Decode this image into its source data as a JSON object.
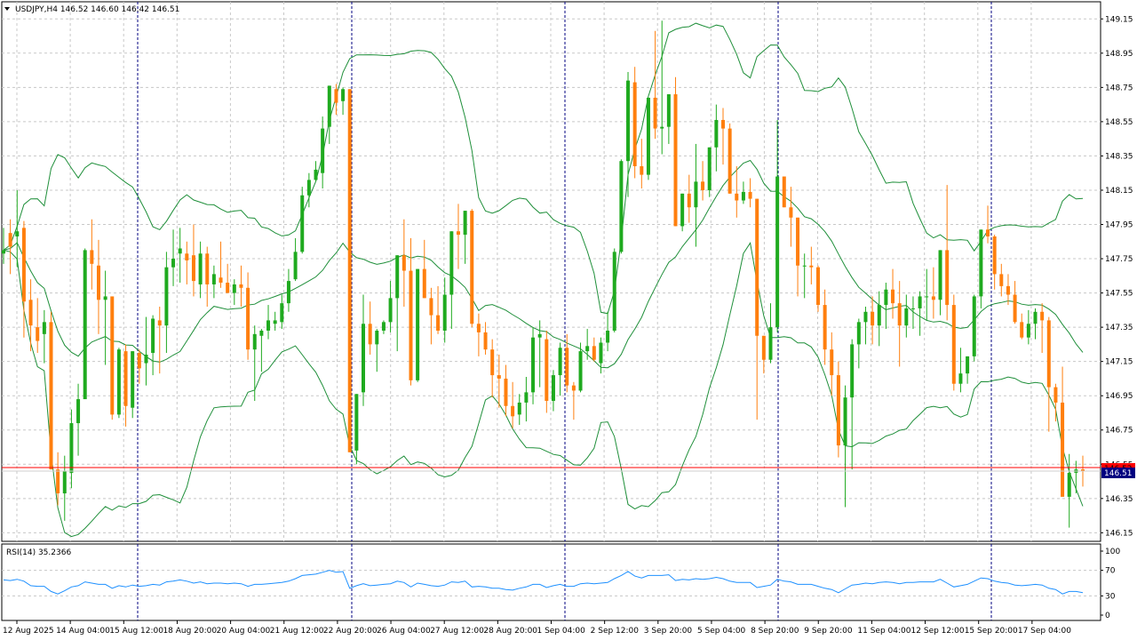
{
  "header": {
    "menu_icon": "triangle-down-icon",
    "title": "USDJPY,H4  146.52 146.60 146.42 146.51"
  },
  "current_price_label": "146.51",
  "current_price_label_secondary": "146.52",
  "rsi_panel": {
    "label": "RSI(14) 35.2366"
  },
  "colors": {
    "bull": "#1faa1f",
    "bear": "#ff7f0e",
    "bands": "#1f8f3a",
    "rsi": "#1e90ff",
    "price_line": "#ff0000",
    "grid": "#c8c8c8",
    "separator": "#000080",
    "price_label_bg": "#000080"
  },
  "chart_data": [
    {
      "type": "candlestick",
      "symbol": "USDJPY",
      "timeframe": "H4",
      "yticks": [
        "149.15",
        "148.95",
        "148.75",
        "148.55",
        "148.35",
        "148.15",
        "147.95",
        "147.75",
        "147.55",
        "147.35",
        "147.15",
        "146.95",
        "146.75",
        "146.55",
        "146.35",
        "146.15"
      ],
      "ylim": [
        146.1,
        149.25
      ],
      "xticks": [
        "12 Aug 2025",
        "14 Aug 04:00",
        "15 Aug 12:00",
        "18 Aug 20:00",
        "20 Aug 04:00",
        "21 Aug 12:00",
        "22 Aug 20:00",
        "26 Aug 04:00",
        "27 Aug 12:00",
        "28 Aug 20:00",
        "1 Sep 04:00",
        "2 Sep 12:00",
        "3 Sep 20:00",
        "5 Sep 04:00",
        "8 Sep 20:00",
        "9 Sep 20:00",
        "11 Sep 04:00",
        "12 Sep 12:00",
        "15 Sep 20:00",
        "17 Sep 04:00"
      ],
      "grid": true,
      "overlays": [
        "Bollinger Bands"
      ],
      "last_price": 146.51,
      "candles_ohlc": [
        [
          147.78,
          147.93,
          147.72,
          147.8
        ],
        [
          147.9,
          147.98,
          147.66,
          147.82
        ],
        [
          147.88,
          148.15,
          147.7,
          147.91
        ],
        [
          147.93,
          147.97,
          147.29,
          147.5
        ],
        [
          147.51,
          147.63,
          147.21,
          147.36
        ],
        [
          147.35,
          147.52,
          147.2,
          147.27
        ],
        [
          147.31,
          147.45,
          147.14,
          147.38
        ],
        [
          147.38,
          147.44,
          146.6,
          146.52
        ],
        [
          146.52,
          146.62,
          146.31,
          146.38
        ],
        [
          146.38,
          146.6,
          146.22,
          146.51
        ],
        [
          146.5,
          146.87,
          146.41,
          146.79
        ],
        [
          146.79,
          147.02,
          146.6,
          146.93
        ],
        [
          146.93,
          147.81,
          146.93,
          147.8
        ],
        [
          147.8,
          147.98,
          147.57,
          147.72
        ],
        [
          147.71,
          147.86,
          147.31,
          147.51
        ],
        [
          147.51,
          147.68,
          147.13,
          147.53
        ],
        [
          147.53,
          147.53,
          146.81,
          146.84
        ],
        [
          146.84,
          147.23,
          146.82,
          147.22
        ],
        [
          147.21,
          147.25,
          146.77,
          146.89
        ],
        [
          146.88,
          147.2,
          146.82,
          147.21
        ],
        [
          147.2,
          147.22,
          147.02,
          147.11
        ],
        [
          147.14,
          147.41,
          147.01,
          147.19
        ],
        [
          147.2,
          147.42,
          147.07,
          147.4
        ],
        [
          147.39,
          147.47,
          147.08,
          147.36
        ],
        [
          147.36,
          147.79,
          147.2,
          147.7
        ],
        [
          147.7,
          147.92,
          147.59,
          147.75
        ],
        [
          147.78,
          147.93,
          147.61,
          147.81
        ],
        [
          147.78,
          147.85,
          147.6,
          147.74
        ],
        [
          147.77,
          147.95,
          147.53,
          147.62
        ],
        [
          147.6,
          147.85,
          147.52,
          147.78
        ],
        [
          147.78,
          147.82,
          147.47,
          147.6
        ],
        [
          147.6,
          147.71,
          147.52,
          147.66
        ],
        [
          147.64,
          147.85,
          147.58,
          147.61
        ],
        [
          147.61,
          147.72,
          147.56,
          147.55
        ],
        [
          147.55,
          147.63,
          147.48,
          147.6
        ],
        [
          147.6,
          147.71,
          147.47,
          147.58
        ],
        [
          147.58,
          147.67,
          147.16,
          147.22
        ],
        [
          147.22,
          147.36,
          146.92,
          147.31
        ],
        [
          147.3,
          147.34,
          147.09,
          147.33
        ],
        [
          147.33,
          147.48,
          147.28,
          147.39
        ],
        [
          147.37,
          147.44,
          147.33,
          147.39
        ],
        [
          147.38,
          147.54,
          147.34,
          147.49
        ],
        [
          147.49,
          147.69,
          147.44,
          147.62
        ],
        [
          147.63,
          147.87,
          147.62,
          147.79
        ],
        [
          147.79,
          148.17,
          147.78,
          148.12
        ],
        [
          148.12,
          148.25,
          148.05,
          148.21
        ],
        [
          148.21,
          148.32,
          148.2,
          148.27
        ],
        [
          148.25,
          148.58,
          148.16,
          148.51
        ],
        [
          148.52,
          148.69,
          148.42,
          148.76
        ],
        [
          148.74,
          148.77,
          148.59,
          148.66
        ],
        [
          148.67,
          148.75,
          148.59,
          148.74
        ],
        [
          148.74,
          148.74,
          146.64,
          146.62
        ],
        [
          146.63,
          146.95,
          146.55,
          146.96
        ],
        [
          146.97,
          147.54,
          146.89,
          147.37
        ],
        [
          147.37,
          147.5,
          147.19,
          147.25
        ],
        [
          147.25,
          147.34,
          147.09,
          147.33
        ],
        [
          147.33,
          147.39,
          147.31,
          147.38
        ],
        [
          147.38,
          147.62,
          147.32,
          147.52
        ],
        [
          147.52,
          147.77,
          147.21,
          147.77
        ],
        [
          147.77,
          147.98,
          147.47,
          147.68
        ],
        [
          147.68,
          147.87,
          147.01,
          147.04
        ],
        [
          147.04,
          147.55,
          147.03,
          147.69
        ],
        [
          147.69,
          147.86,
          147.53,
          147.52
        ],
        [
          147.52,
          147.58,
          147.25,
          147.42
        ],
        [
          147.42,
          147.59,
          147.31,
          147.33
        ],
        [
          147.33,
          147.64,
          147.26,
          147.54
        ],
        [
          147.54,
          147.88,
          147.34,
          147.91
        ],
        [
          147.91,
          148.07,
          147.69,
          147.89
        ],
        [
          147.89,
          148.01,
          147.72,
          148.03
        ],
        [
          148.03,
          148.04,
          147.35,
          147.37
        ],
        [
          147.37,
          147.43,
          147.18,
          147.32
        ],
        [
          147.32,
          147.38,
          147.19,
          147.22
        ],
        [
          147.22,
          147.28,
          146.94,
          147.07
        ],
        [
          147.07,
          147.19,
          146.88,
          147.05
        ],
        [
          147.05,
          147.13,
          146.83,
          146.89
        ],
        [
          146.89,
          147.03,
          146.76,
          146.83
        ],
        [
          146.84,
          146.96,
          146.78,
          146.91
        ],
        [
          146.91,
          147.06,
          146.8,
          146.97
        ],
        [
          146.97,
          147.35,
          146.9,
          147.29
        ],
        [
          147.29,
          147.39,
          147.0,
          147.31
        ],
        [
          147.28,
          147.33,
          146.85,
          146.92
        ],
        [
          146.92,
          147.1,
          146.86,
          147.07
        ],
        [
          147.07,
          147.26,
          146.95,
          147.23
        ],
        [
          147.23,
          147.31,
          146.97,
          147.01
        ],
        [
          147.01,
          147.03,
          146.81,
          146.98
        ],
        [
          146.98,
          147.26,
          146.97,
          147.21
        ],
        [
          147.21,
          147.34,
          147.16,
          147.24
        ],
        [
          147.24,
          147.29,
          147.15,
          147.16
        ],
        [
          147.14,
          147.29,
          147.08,
          147.26
        ],
        [
          147.26,
          147.44,
          147.21,
          147.33
        ],
        [
          147.33,
          147.81,
          147.32,
          147.79
        ],
        [
          147.79,
          148.33,
          147.78,
          148.32
        ],
        [
          148.32,
          148.84,
          148.11,
          148.79
        ],
        [
          148.78,
          148.87,
          148.22,
          148.29
        ],
        [
          148.29,
          148.45,
          148.16,
          148.24
        ],
        [
          148.24,
          148.69,
          148.21,
          148.69
        ],
        [
          148.69,
          149.08,
          148.45,
          148.51
        ],
        [
          148.51,
          149.14,
          148.36,
          148.52
        ],
        [
          148.52,
          148.58,
          148.42,
          148.71
        ],
        [
          148.71,
          148.81,
          147.94,
          147.94
        ],
        [
          147.94,
          148.01,
          147.91,
          148.13
        ],
        [
          148.13,
          148.24,
          147.96,
          148.05
        ],
        [
          148.05,
          148.42,
          147.82,
          148.2
        ],
        [
          148.2,
          148.32,
          148.09,
          148.15
        ],
        [
          148.15,
          148.39,
          148.11,
          148.4
        ],
        [
          148.4,
          148.65,
          148.26,
          148.56
        ],
        [
          148.56,
          148.63,
          148.3,
          148.51
        ],
        [
          148.51,
          148.54,
          148.17,
          148.13
        ],
        [
          148.13,
          148.29,
          147.99,
          148.09
        ],
        [
          148.09,
          148.2,
          148.07,
          148.14
        ],
        [
          148.14,
          148.22,
          148.05,
          148.1
        ],
        [
          148.1,
          148.1,
          146.81,
          147.3
        ],
        [
          147.3,
          147.29,
          147.08,
          147.16
        ],
        [
          147.16,
          147.49,
          147.14,
          147.35
        ],
        [
          147.35,
          148.56,
          147.32,
          148.23
        ],
        [
          148.23,
          148.2,
          148.06,
          148.05
        ],
        [
          148.05,
          148.17,
          147.82,
          147.99
        ],
        [
          147.99,
          147.89,
          147.53,
          147.71
        ],
        [
          147.71,
          147.78,
          147.52,
          147.71
        ],
        [
          147.71,
          147.82,
          147.6,
          147.7
        ],
        [
          147.7,
          147.71,
          147.44,
          147.48
        ],
        [
          147.48,
          147.57,
          147.13,
          147.22
        ],
        [
          147.22,
          147.32,
          146.95,
          147.07
        ],
        [
          147.07,
          147.15,
          146.59,
          146.66
        ],
        [
          146.66,
          147.01,
          146.3,
          146.94
        ],
        [
          146.94,
          147.28,
          146.52,
          147.25
        ],
        [
          147.25,
          147.4,
          147.11,
          147.38
        ],
        [
          147.38,
          147.47,
          147.25,
          147.44
        ],
        [
          147.44,
          147.53,
          147.25,
          147.36
        ],
        [
          147.36,
          147.56,
          147.24,
          147.48
        ],
        [
          147.48,
          147.61,
          147.34,
          147.57
        ],
        [
          147.57,
          147.69,
          147.4,
          147.49
        ],
        [
          147.49,
          147.62,
          147.12,
          147.36
        ],
        [
          147.36,
          147.54,
          147.29,
          147.46
        ],
        [
          147.46,
          147.53,
          147.34,
          147.46
        ],
        [
          147.46,
          147.56,
          147.3,
          147.53
        ],
        [
          147.53,
          147.69,
          147.39,
          147.53
        ],
        [
          147.53,
          147.7,
          147.4,
          147.51
        ],
        [
          147.51,
          147.8,
          147.42,
          147.8
        ],
        [
          147.8,
          148.18,
          147.39,
          147.48
        ],
        [
          147.48,
          147.54,
          146.98,
          147.02
        ],
        [
          147.02,
          147.23,
          146.97,
          147.08
        ],
        [
          147.08,
          147.18,
          147.02,
          147.18
        ],
        [
          147.18,
          147.54,
          147.15,
          147.53
        ],
        [
          147.53,
          147.92,
          147.46,
          147.92
        ],
        [
          147.92,
          148.06,
          147.84,
          147.88
        ],
        [
          147.88,
          147.89,
          147.57,
          147.66
        ],
        [
          147.66,
          147.72,
          147.53,
          147.59
        ],
        [
          147.59,
          147.66,
          147.48,
          147.54
        ],
        [
          147.54,
          147.62,
          147.37,
          147.38
        ],
        [
          147.38,
          147.43,
          147.28,
          147.29
        ],
        [
          147.29,
          147.45,
          147.25,
          147.37
        ],
        [
          147.37,
          147.46,
          147.28,
          147.44
        ],
        [
          147.44,
          147.49,
          147.2,
          147.39
        ],
        [
          147.39,
          147.41,
          146.74,
          147.0
        ],
        [
          147.0,
          147.02,
          146.8,
          146.91
        ],
        [
          146.91,
          147.12,
          146.41,
          146.36
        ],
        [
          146.36,
          146.61,
          146.18,
          146.5
        ],
        [
          146.5,
          146.57,
          146.38,
          146.52
        ],
        [
          146.52,
          146.6,
          146.42,
          146.51
        ]
      ]
    },
    {
      "type": "line",
      "name": "RSI(14)",
      "last_value": 35.2366,
      "ylim": [
        0,
        100
      ],
      "yticks": [
        "100",
        "70",
        "30",
        "0"
      ],
      "levels": [
        30,
        70
      ],
      "values": [
        55,
        54,
        56,
        53,
        46,
        45,
        45,
        37,
        33,
        38,
        44,
        46,
        52,
        50,
        48,
        48,
        42,
        46,
        44,
        47,
        45,
        46,
        48,
        47,
        52,
        53,
        55,
        53,
        50,
        52,
        49,
        50,
        50,
        49,
        50,
        49,
        45,
        48,
        48,
        49,
        50,
        51,
        53,
        57,
        62,
        63,
        64,
        67,
        70,
        67,
        68,
        42,
        46,
        49,
        46,
        47,
        48,
        49,
        53,
        51,
        44,
        50,
        48,
        46,
        45,
        47,
        52,
        51,
        53,
        44,
        45,
        44,
        42,
        42,
        40,
        39,
        42,
        44,
        48,
        48,
        43,
        46,
        48,
        45,
        45,
        49,
        50,
        49,
        50,
        51,
        57,
        62,
        68,
        61,
        58,
        62,
        62,
        62,
        63,
        54,
        56,
        55,
        57,
        56,
        57,
        59,
        57,
        53,
        51,
        51,
        51,
        43,
        45,
        47,
        56,
        53,
        52,
        48,
        48,
        48,
        45,
        42,
        40,
        35,
        41,
        47,
        48,
        50,
        49,
        51,
        52,
        51,
        49,
        51,
        51,
        52,
        52,
        52,
        56,
        50,
        44,
        46,
        48,
        53,
        58,
        57,
        53,
        51,
        50,
        47,
        46,
        47,
        48,
        47,
        42,
        40,
        33,
        37,
        37,
        35
      ]
    }
  ]
}
